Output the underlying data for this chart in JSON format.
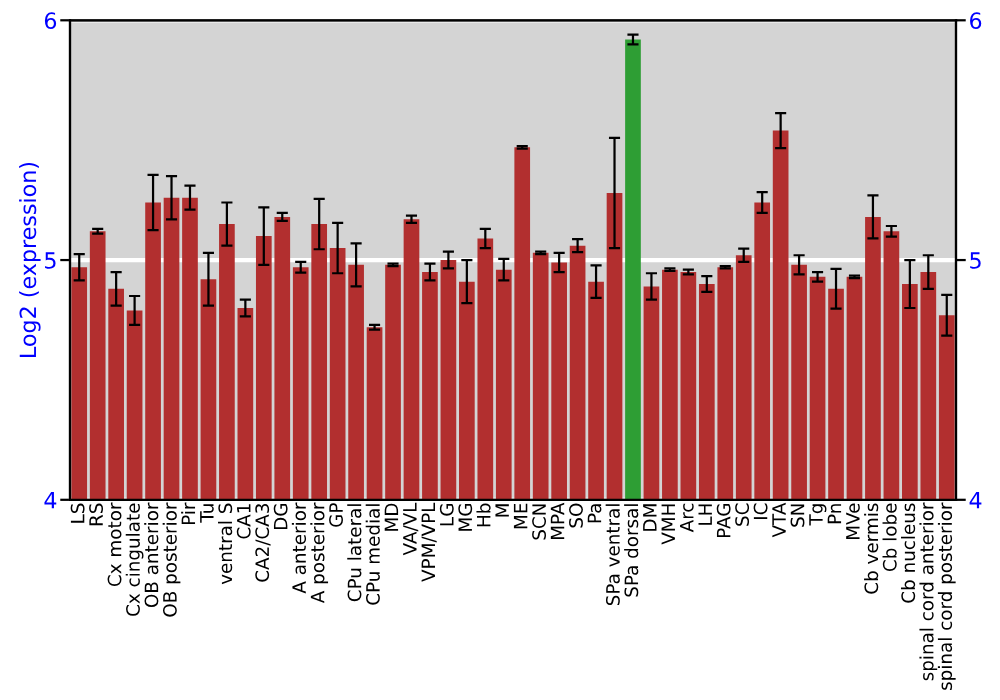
{
  "chart_data": {
    "type": "bar",
    "ylabel": "Log2 (expression)",
    "categories": [
      "LS",
      "RS",
      "Cx motor",
      "Cx cingulate",
      "OB anterior",
      "OB posterior",
      "Pir",
      "Tu",
      "ventral S",
      "CA1",
      "CA2/CA3",
      "DG",
      "A anterior",
      "A posterior",
      "GP",
      "CPu lateral",
      "CPu medial",
      "MD",
      "VA/VL",
      "VPM/VPL",
      "LG",
      "MG",
      "Hb",
      "M",
      "ME",
      "SCN",
      "MPA",
      "SO",
      "Pa",
      "SPa ventral",
      "SPa dorsal",
      "DM",
      "VMH",
      "Arc",
      "LH",
      "PAG",
      "SC",
      "IC",
      "VTA",
      "SN",
      "Tg",
      "Pn",
      "MVe",
      "Cb vermis",
      "Cb lobe",
      "Cb nucleus",
      "spinal cord anterior",
      "spinal cord posterior"
    ],
    "values": [
      4.97,
      5.12,
      4.88,
      4.79,
      5.24,
      5.26,
      5.26,
      4.92,
      5.15,
      4.8,
      5.1,
      5.18,
      4.97,
      5.15,
      5.05,
      4.98,
      4.72,
      4.98,
      5.17,
      4.95,
      5.0,
      4.91,
      5.09,
      4.96,
      5.47,
      5.03,
      4.99,
      5.06,
      4.91,
      5.28,
      5.92,
      4.89,
      4.96,
      4.95,
      4.9,
      4.97,
      5.02,
      5.24,
      5.54,
      4.98,
      4.93,
      4.88,
      4.93,
      5.18,
      5.12,
      4.9,
      4.95,
      4.77
    ],
    "errors": [
      0.055,
      0.01,
      0.07,
      0.06,
      0.115,
      0.09,
      0.05,
      0.11,
      0.09,
      0.035,
      0.12,
      0.017,
      0.022,
      0.105,
      0.105,
      0.09,
      0.01,
      0.005,
      0.015,
      0.035,
      0.035,
      0.09,
      0.04,
      0.045,
      0.005,
      0.005,
      0.04,
      0.027,
      0.068,
      0.23,
      0.02,
      0.055,
      0.005,
      0.01,
      0.033,
      0.005,
      0.028,
      0.043,
      0.073,
      0.04,
      0.02,
      0.083,
      0.005,
      0.09,
      0.022,
      0.1,
      0.07,
      0.085
    ],
    "colors": [
      "#b22f2f",
      "#b22f2f",
      "#b22f2f",
      "#b22f2f",
      "#b22f2f",
      "#b22f2f",
      "#b22f2f",
      "#b22f2f",
      "#b22f2f",
      "#b22f2f",
      "#b22f2f",
      "#b22f2f",
      "#b22f2f",
      "#b22f2f",
      "#b22f2f",
      "#b22f2f",
      "#b22f2f",
      "#b22f2f",
      "#b22f2f",
      "#b22f2f",
      "#b22f2f",
      "#b22f2f",
      "#b22f2f",
      "#b22f2f",
      "#b22f2f",
      "#b22f2f",
      "#b22f2f",
      "#b22f2f",
      "#b22f2f",
      "#b22f2f",
      "#2e9e34",
      "#b22f2f",
      "#b22f2f",
      "#b22f2f",
      "#b22f2f",
      "#b22f2f",
      "#b22f2f",
      "#b22f2f",
      "#b22f2f",
      "#b22f2f",
      "#b22f2f",
      "#b22f2f",
      "#b22f2f",
      "#b22f2f",
      "#b22f2f",
      "#b22f2f",
      "#b22f2f",
      "#b22f2f"
    ],
    "ylim": [
      4,
      6
    ],
    "yticks": [
      4,
      5,
      6
    ],
    "y2lim": [
      4,
      6
    ],
    "y2ticks": [
      4,
      5,
      6
    ],
    "grid": "y"
  }
}
